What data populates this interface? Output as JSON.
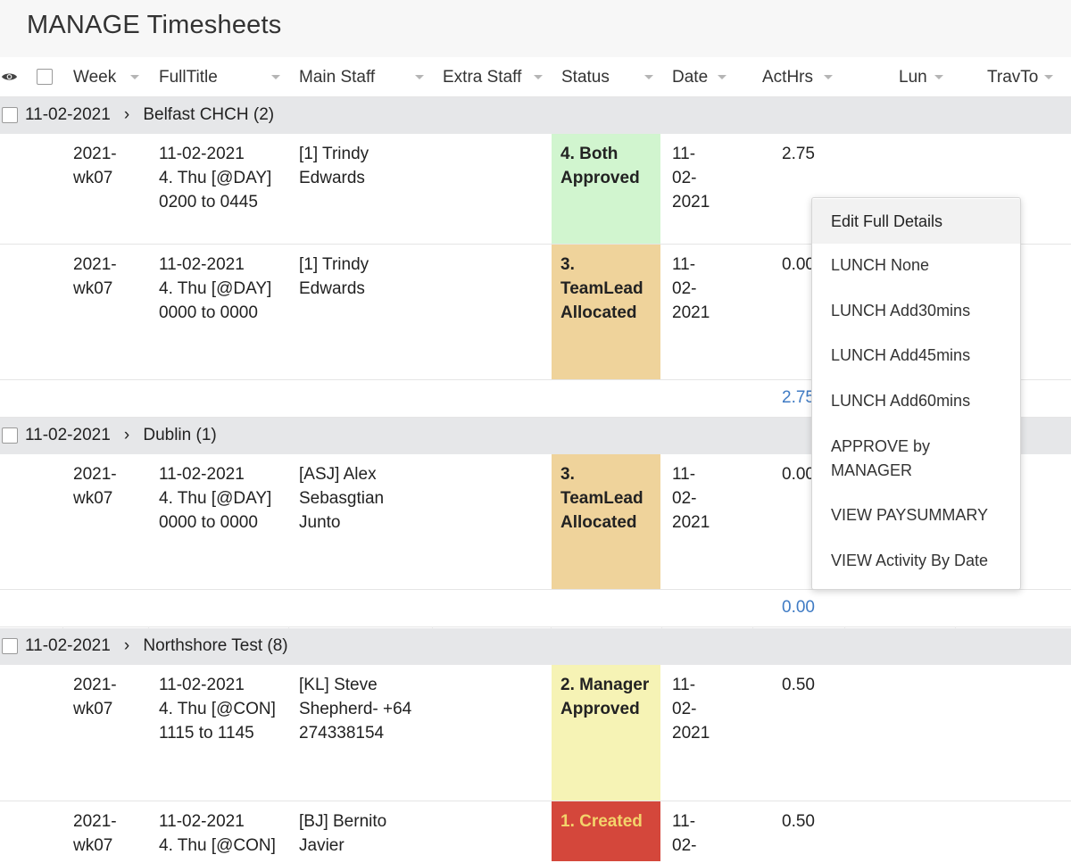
{
  "page": {
    "title": "MANAGE Timesheets"
  },
  "columns": {
    "week": "Week",
    "fulltitle": "FullTitle",
    "mainstaff": "Main Staff",
    "extrastaff": "Extra Staff",
    "status": "Status",
    "date": "Date",
    "acthrs": "ActHrs",
    "lun": "Lun",
    "travto": "TravTo"
  },
  "groups": [
    {
      "label": "11-02-2021",
      "name": "Belfast CHCH (2)",
      "rows": [
        {
          "week": "2021-\nwk07",
          "fulltitle": "11-02-2021\n4. Thu [@DAY]\n0200 to 0445",
          "mainstaff": "[1] Trindy\nEdwards",
          "status": "4. Both\nApproved",
          "date": "11-\n02-\n2021",
          "acthrs": "2.75"
        },
        {
          "week": "2021-\nwk07",
          "fulltitle": "11-02-2021\n4. Thu [@DAY]\n0000 to 0000",
          "mainstaff": "[1] Trindy\nEdwards",
          "status": "3.\nTeamLead\nAllocated",
          "date": "11-\n02-\n2021",
          "acthrs": "0.00"
        }
      ],
      "total": "2.75"
    },
    {
      "label": "11-02-2021",
      "name": "Dublin (1)",
      "rows": [
        {
          "week": "2021-\nwk07",
          "fulltitle": "11-02-2021\n4. Thu [@DAY]\n0000 to 0000",
          "mainstaff": "[ASJ] Alex\nSebasgtian\nJunto",
          "status": "3.\nTeamLead\nAllocated",
          "date": "11-\n02-\n2021",
          "acthrs": "0.00"
        }
      ],
      "total": "0.00"
    },
    {
      "label": "11-02-2021",
      "name": "Northshore Test (8)",
      "rows": [
        {
          "week": "2021-\nwk07",
          "fulltitle": "11-02-2021\n4. Thu [@CON]\n1115 to 1145",
          "mainstaff": "[KL] Steve\nShepherd- +64\n274338154",
          "status": "2. Manager\nApproved",
          "date": "11-\n02-\n2021",
          "acthrs": "0.50"
        },
        {
          "week": "2021-\nwk07",
          "fulltitle": "11-02-2021\n4. Thu [@CON]",
          "mainstaff": "[BJ] Bernito\nJavier",
          "status": "1. Created",
          "date": "11-\n02-",
          "acthrs": "0.50"
        }
      ]
    }
  ],
  "context_menu": {
    "items": [
      "Edit Full Details",
      "LUNCH None",
      "LUNCH Add30mins",
      "LUNCH Add45mins",
      "LUNCH Add60mins",
      "APPROVE by\nMANAGER",
      "VIEW PAYSUMMARY",
      "VIEW Activity By Date"
    ]
  },
  "colors": {
    "status_both_approved": "#d1f5cf",
    "status_teamlead_allocated": "#efd39b",
    "status_manager_approved": "#f6f3b5",
    "status_created": "#d4473b",
    "total_link": "#3f7bc4"
  }
}
